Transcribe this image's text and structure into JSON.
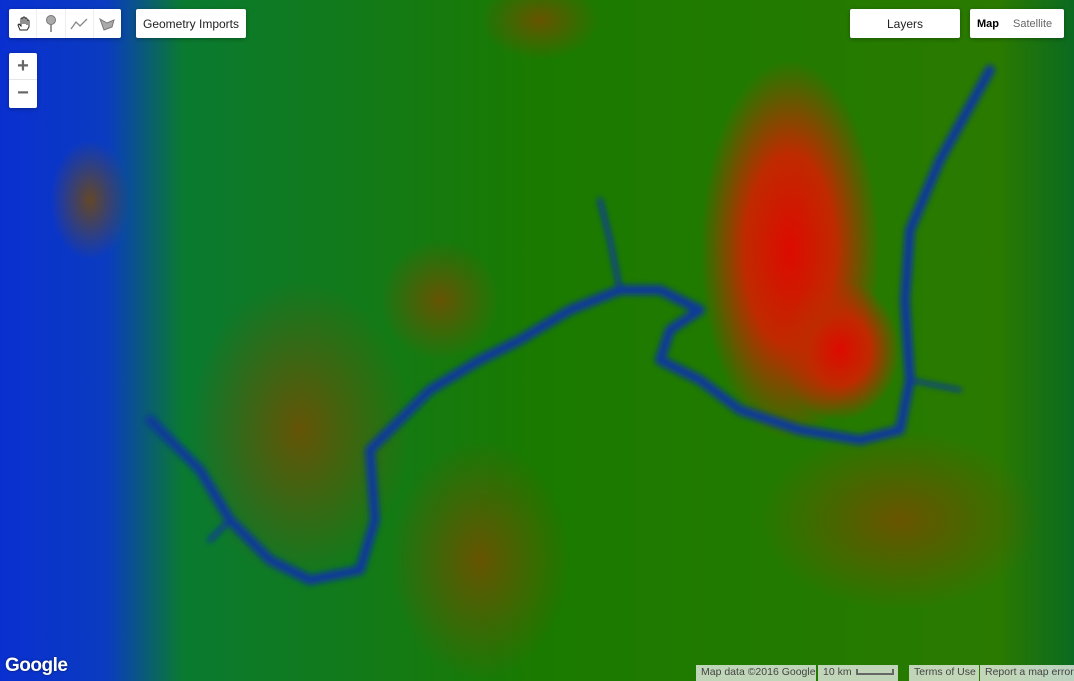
{
  "toolbar": {
    "tools": [
      {
        "name": "pan-hand-icon"
      },
      {
        "name": "marker-icon"
      },
      {
        "name": "line-icon"
      },
      {
        "name": "polygon-icon"
      }
    ],
    "geometry_imports": "Geometry Imports"
  },
  "zoom": {
    "in": "+",
    "out": "−"
  },
  "layers_label": "Layers",
  "map_type": {
    "map": "Map",
    "satellite": "Satellite",
    "selected": "Map"
  },
  "logo": "Google",
  "footer": {
    "map_data": "Map data ©2016 Google",
    "scale": "10 km",
    "terms": "Terms of Use",
    "report": "Report a map error"
  },
  "palette": {
    "low": "#0022cc",
    "mid": "#008000",
    "high": "#dd0000"
  }
}
